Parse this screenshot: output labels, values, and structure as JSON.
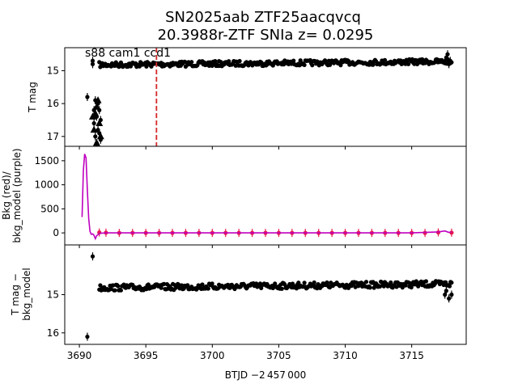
{
  "chart_data": [
    {
      "type": "scatter",
      "title": "SN2025aab  ZTF25aacqvcq",
      "subtitle": "20.3988r-ZTF SNIa z= 0.0295",
      "annotation": "s88 cam1 ccd1",
      "ylabel": "T mag",
      "xlim": [
        3688.9,
        3719.1
      ],
      "ylim": [
        17.3,
        14.3
      ],
      "y_inverted": true,
      "yticks": [
        "15",
        "16",
        "17"
      ],
      "vline": {
        "x": 3695.8,
        "color": "#d62728",
        "style": "dashed"
      },
      "series": [
        {
          "kind": "band",
          "color": "#000000",
          "x_start": 3691.5,
          "x_end": 3718.0,
          "y_start": 14.82,
          "y_end": 14.72,
          "spread": 0.08
        },
        {
          "kind": "points",
          "color": "#000000",
          "x": [
            3690.6,
            3691.0,
            3691.0,
            3691.1,
            3691.1,
            3691.2,
            3691.2,
            3691.3,
            3691.3,
            3691.4,
            3691.4,
            3691.5,
            3691.5,
            3691.6,
            3691.6,
            3717.6,
            3717.7,
            3717.8,
            3717.9
          ],
          "y": [
            15.8,
            14.7,
            14.8,
            16.2,
            16.6,
            15.9,
            17.0,
            16.4,
            17.2,
            16.0,
            16.8,
            16.2,
            16.9,
            16.5,
            17.1,
            14.6,
            14.5,
            14.8,
            14.7
          ]
        }
      ]
    },
    {
      "type": "line",
      "ylabel": "Bkg (red)/\nbkg_model (purple)",
      "xlim": [
        3688.9,
        3719.1
      ],
      "ylim": [
        -250,
        1800
      ],
      "yticks": [
        0,
        500,
        1000,
        1500
      ],
      "series": [
        {
          "color": "#e6194b",
          "kind": "points",
          "x": [
            3691.5,
            3692.0,
            3693.0,
            3694.0,
            3695.0,
            3696.0,
            3697.0,
            3698.0,
            3699.0,
            3700.0,
            3701.0,
            3702.0,
            3703.0,
            3704.0,
            3705.0,
            3706.0,
            3707.0,
            3708.0,
            3709.0,
            3710.0,
            3711.0,
            3712.0,
            3713.0,
            3714.0,
            3715.0,
            3716.0,
            3717.0,
            3718.0
          ],
          "y": [
            10,
            5,
            0,
            0,
            0,
            0,
            0,
            0,
            0,
            0,
            0,
            0,
            0,
            0,
            0,
            0,
            0,
            0,
            0,
            0,
            0,
            0,
            0,
            0,
            0,
            0,
            10,
            5
          ]
        },
        {
          "color": "#bf00bf",
          "kind": "line",
          "x": [
            3690.2,
            3690.3,
            3690.4,
            3690.5,
            3690.6,
            3690.7,
            3690.8,
            3690.9,
            3691.0,
            3691.1,
            3691.2,
            3691.3,
            3691.5,
            3692.0,
            3695.0,
            3700.0,
            3705.0,
            3710.0,
            3715.0,
            3717.0,
            3717.5,
            3717.8,
            3718.0
          ],
          "y": [
            330,
            1300,
            1640,
            1560,
            900,
            300,
            30,
            -30,
            -20,
            -50,
            -120,
            -60,
            -10,
            0,
            0,
            0,
            0,
            0,
            0,
            20,
            40,
            10,
            20
          ]
        }
      ]
    },
    {
      "type": "scatter",
      "ylabel": "T mag −\nbkg_model",
      "xlabel": "BTJD −2 457 000",
      "xlim": [
        3688.9,
        3719.1
      ],
      "ylim": [
        16.3,
        13.7
      ],
      "y_inverted": true,
      "xticks": [
        3690,
        3695,
        3700,
        3705,
        3710,
        3715
      ],
      "yticks": [
        "15",
        "16"
      ],
      "series": [
        {
          "kind": "band",
          "color": "#000000",
          "x_start": 3691.5,
          "x_end": 3718.0,
          "y_start": 14.82,
          "y_end": 14.72,
          "spread": 0.08
        },
        {
          "kind": "points",
          "color": "#000000",
          "x": [
            3690.6,
            3691.0,
            3717.5,
            3717.6,
            3717.8,
            3718.0
          ],
          "y": [
            16.1,
            14.0,
            15.0,
            14.9,
            15.1,
            15.0
          ]
        }
      ]
    }
  ]
}
